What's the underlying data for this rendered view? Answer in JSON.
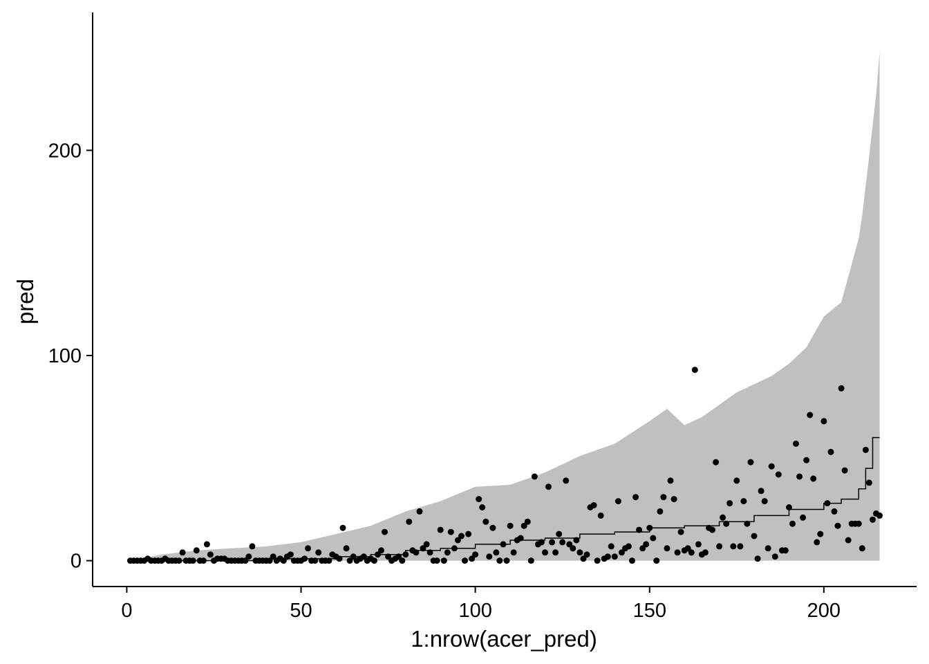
{
  "chart_data": {
    "type": "scatter",
    "title": "",
    "xlabel": "1:nrow(acer_pred)",
    "ylabel": "pred",
    "xlim": [
      -9.8,
      226.6
    ],
    "ylim": [
      -12.6,
      267.2
    ],
    "x_ticks": [
      0,
      50,
      100,
      150,
      200
    ],
    "x_tick_labels": [
      "0",
      "50",
      "100",
      "150",
      "200"
    ],
    "y_ticks": [
      0,
      100,
      200
    ],
    "y_tick_labels": [
      "0",
      "100",
      "200"
    ],
    "grid": false,
    "legend": "none",
    "colors": {
      "points": "#000000",
      "line": "#000000",
      "ribbon": "#c0c0c0",
      "axis": "#000000"
    },
    "ribbon": {
      "x": [
        1,
        10,
        20,
        30,
        40,
        50,
        60,
        70,
        80,
        90,
        100,
        110,
        120,
        130,
        140,
        150,
        155,
        160,
        165,
        170,
        175,
        180,
        185,
        190,
        195,
        200,
        205,
        210,
        211,
        213,
        215,
        216
      ],
      "lower": [
        0,
        0,
        0,
        0,
        0,
        0,
        0,
        0,
        0,
        0,
        0,
        0,
        0,
        0,
        0,
        0,
        0,
        0,
        0,
        0,
        0,
        0,
        0,
        0,
        0,
        0,
        0,
        0,
        0,
        0,
        0,
        0
      ],
      "upper": [
        0,
        3,
        5,
        6,
        7,
        9,
        13,
        17,
        24,
        29,
        36,
        37,
        43,
        51,
        57,
        68,
        74,
        66,
        70,
        76,
        82,
        86,
        90,
        96,
        104,
        119,
        126,
        157,
        168,
        197,
        227,
        248
      ]
    },
    "median_line": {
      "x": [
        1,
        40,
        60,
        70,
        80,
        90,
        100,
        110,
        120,
        130,
        140,
        150,
        160,
        170,
        180,
        190,
        200,
        205,
        210,
        212,
        214,
        216
      ],
      "y": [
        0,
        1,
        2,
        3,
        5,
        6,
        8,
        10,
        11,
        13,
        14,
        16,
        17,
        19,
        22,
        25,
        28,
        30,
        35,
        45,
        60,
        60
      ]
    },
    "points": {
      "x": [
        1,
        2,
        3,
        4,
        5,
        6,
        7,
        8,
        9,
        10,
        11,
        12,
        13,
        14,
        15,
        16,
        17,
        18,
        19,
        20,
        21,
        22,
        23,
        24,
        25,
        26,
        27,
        28,
        29,
        30,
        31,
        32,
        33,
        34,
        35,
        36,
        37,
        38,
        39,
        40,
        41,
        42,
        43,
        44,
        45,
        46,
        47,
        48,
        49,
        50,
        51,
        52,
        53,
        54,
        55,
        56,
        57,
        58,
        59,
        60,
        61,
        62,
        63,
        64,
        65,
        66,
        67,
        68,
        69,
        70,
        71,
        72,
        73,
        74,
        75,
        76,
        77,
        78,
        79,
        80,
        81,
        82,
        83,
        84,
        85,
        86,
        87,
        88,
        89,
        90,
        91,
        92,
        93,
        94,
        95,
        96,
        97,
        98,
        99,
        100,
        101,
        102,
        103,
        104,
        105,
        106,
        107,
        108,
        109,
        110,
        111,
        112,
        113,
        114,
        115,
        116,
        117,
        118,
        119,
        120,
        121,
        122,
        123,
        124,
        125,
        126,
        127,
        128,
        129,
        130,
        131,
        132,
        133,
        134,
        135,
        136,
        137,
        138,
        139,
        140,
        141,
        142,
        143,
        144,
        145,
        146,
        147,
        148,
        149,
        150,
        151,
        152,
        153,
        154,
        155,
        156,
        157,
        158,
        159,
        160,
        161,
        162,
        163,
        164,
        165,
        166,
        167,
        168,
        169,
        170,
        171,
        172,
        173,
        174,
        175,
        176,
        177,
        178,
        179,
        180,
        181,
        182,
        183,
        184,
        185,
        186,
        187,
        188,
        189,
        190,
        191,
        192,
        193,
        194,
        195,
        196,
        197,
        198,
        199,
        200,
        201,
        202,
        203,
        204,
        205,
        206,
        207,
        208,
        209,
        210,
        211,
        212,
        213,
        214,
        215,
        216
      ],
      "y": [
        0,
        0,
        0,
        0,
        0,
        1,
        0,
        0,
        0,
        0,
        1,
        0,
        0,
        0,
        0,
        4,
        0,
        0,
        0,
        5,
        0,
        0,
        8,
        3,
        0,
        1,
        1,
        1,
        0,
        0,
        0,
        0,
        0,
        0,
        2,
        7,
        0,
        0,
        0,
        0,
        0,
        2,
        0,
        1,
        0,
        2,
        3,
        0,
        0,
        0,
        1,
        6,
        0,
        0,
        4,
        0,
        0,
        0,
        3,
        2,
        1,
        16,
        6,
        0,
        2,
        0,
        1,
        2,
        0,
        1,
        0,
        3,
        5,
        14,
        2,
        0,
        1,
        2,
        0,
        3,
        19,
        5,
        4,
        24,
        6,
        8,
        4,
        0,
        0,
        15,
        0,
        4,
        14,
        6,
        10,
        12,
        0,
        13,
        1,
        3,
        30,
        26,
        19,
        2,
        16,
        4,
        0,
        8,
        0,
        17,
        4,
        10,
        11,
        17,
        19,
        0,
        41,
        8,
        9,
        4,
        36,
        9,
        4,
        13,
        9,
        39,
        8,
        6,
        10,
        4,
        1,
        3,
        26,
        27,
        0,
        22,
        1,
        2,
        7,
        2,
        29,
        4,
        6,
        7,
        0,
        31,
        15,
        6,
        8,
        16,
        11,
        0,
        24,
        31,
        6,
        39,
        30,
        4,
        14,
        5,
        6,
        4,
        93,
        8,
        3,
        4,
        16,
        15,
        48,
        7,
        21,
        18,
        28,
        7,
        39,
        7,
        29,
        18,
        48,
        12,
        1,
        34,
        29,
        6,
        46,
        2,
        42,
        5,
        5,
        26,
        18,
        57,
        41,
        21,
        49,
        71,
        40,
        9,
        13,
        68,
        28,
        53,
        24,
        17,
        84,
        44,
        10,
        18,
        18,
        18,
        6,
        54,
        38,
        20,
        23,
        22
      ]
    }
  }
}
